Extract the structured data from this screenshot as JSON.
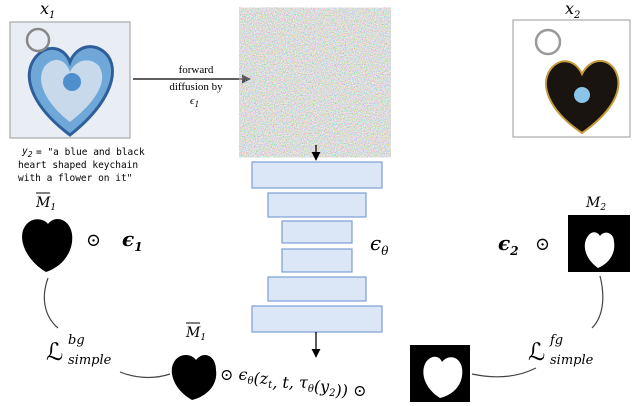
{
  "x1": {
    "base": "x",
    "sub": "1"
  },
  "x2": {
    "base": "x",
    "sub": "2"
  },
  "forward": {
    "lines": [
      "forward",
      "diffusion by"
    ],
    "eps": {
      "base": "ϵ",
      "sub": "1"
    }
  },
  "prompt": {
    "var": {
      "base": "y",
      "sub": "2"
    },
    "lines": [
      "= \"a blue and black",
      "heart shaped keychain",
      "with a flower on it\""
    ]
  },
  "mask_bar_1": {
    "base": "M",
    "sub": "1"
  },
  "left_term": {
    "op": "⊙",
    "eps": {
      "base": "ϵ",
      "sub": "1"
    }
  },
  "unet_label": {
    "base": "ϵ",
    "sub": "θ"
  },
  "right_term": {
    "eps": {
      "base": "ϵ",
      "sub": "2"
    },
    "op": "⊙"
  },
  "mask_2": {
    "base": "M",
    "sub": "2"
  },
  "loss_bg": {
    "symbol": "ℒ",
    "sup": "bg",
    "sub": "simple"
  },
  "loss_fg": {
    "symbol": "ℒ",
    "sup": "fg",
    "sub": "simple"
  },
  "mask_bar_bottom": {
    "base": "M",
    "sub": "1"
  },
  "formula": [
    {
      "text": "⊙ ϵ"
    },
    {
      "sub": "θ"
    },
    {
      "text": "(z"
    },
    {
      "sub": "t"
    },
    {
      "text": ", t, τ"
    },
    {
      "sub": "θ"
    },
    {
      "text": "(y"
    },
    {
      "sub": "2"
    },
    {
      "text": ")) ⊙"
    }
  ]
}
